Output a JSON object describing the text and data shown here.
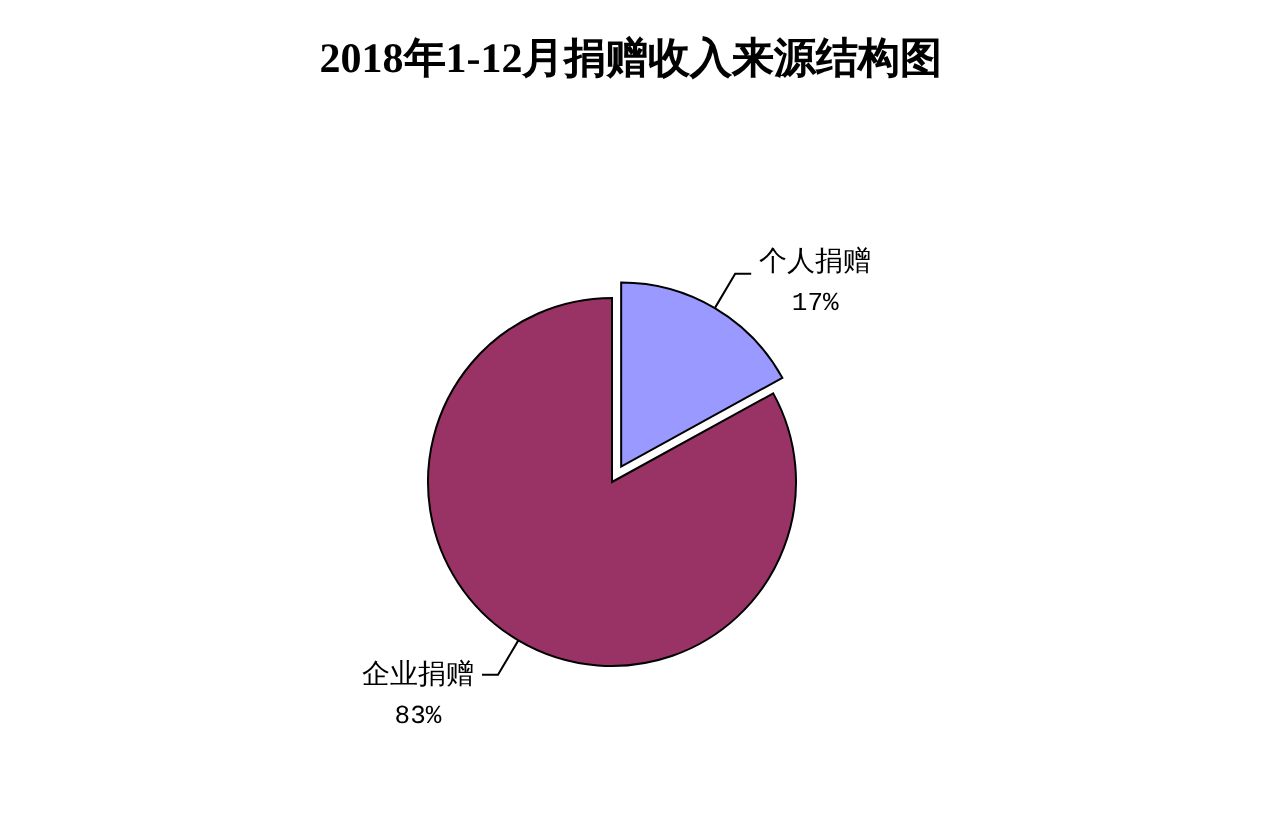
{
  "chart_data": {
    "type": "pie",
    "title": "2018年1-12月捐赠收入来源结构图",
    "categories": [
      "个人捐赠",
      "企业捐赠"
    ],
    "values": [
      17,
      83
    ],
    "colors": [
      "#9999ff",
      "#993366"
    ],
    "value_labels": [
      "17%",
      "83%"
    ]
  }
}
